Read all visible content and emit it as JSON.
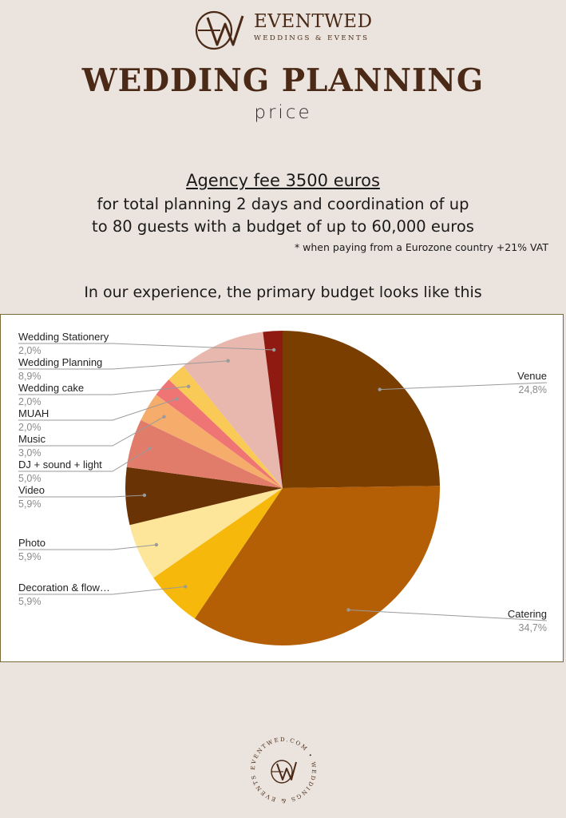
{
  "brand": {
    "name": "EVENTWED",
    "tagline": "WEDDINGS & EVENTS",
    "monogram": "EW",
    "seal_text": "EVENTWED.COM • WEDDINGS & EVENTS •"
  },
  "header": {
    "title": "WEDDING PLANNING",
    "subtitle": "price"
  },
  "offer": {
    "fee": "Agency fee 3500 euros",
    "line1": "for total planning 2 days and coordination of up",
    "line2": "to 80 guests with a budget of up to 60,000 euros",
    "vat_note": "* when paying from a Eurozone country +21% VAT"
  },
  "intro": "In our experience, the primary budget looks like this",
  "chart_data": {
    "type": "pie",
    "slices": [
      {
        "name": "Venue",
        "value": 24.8,
        "label": "24,8%",
        "color": "#7a3e00",
        "side": "right"
      },
      {
        "name": "Catering",
        "value": 34.7,
        "label": "34,7%",
        "color": "#b45f06",
        "side": "right"
      },
      {
        "name": "Decoration & flow…",
        "value": 5.9,
        "label": "5,9%",
        "color": "#f6b90b",
        "side": "left"
      },
      {
        "name": "Photo",
        "value": 5.9,
        "label": "5,9%",
        "color": "#fde59a",
        "side": "left"
      },
      {
        "name": "Video",
        "value": 5.9,
        "label": "5,9%",
        "color": "#6a3306",
        "side": "left"
      },
      {
        "name": "DJ + sound + light",
        "value": 5.0,
        "label": "5,0%",
        "color": "#e17c6b",
        "side": "left"
      },
      {
        "name": "Music",
        "value": 3.0,
        "label": "3,0%",
        "color": "#f6ad6b",
        "side": "left"
      },
      {
        "name": "MUAH",
        "value": 2.0,
        "label": "2,0%",
        "color": "#ef7575",
        "side": "left"
      },
      {
        "name": "Wedding cake",
        "value": 2.0,
        "label": "2,0%",
        "color": "#f9ca55",
        "side": "left"
      },
      {
        "name": "Wedding Planning",
        "value": 8.9,
        "label": "8,9%",
        "color": "#e8b8ae",
        "side": "left"
      },
      {
        "name": "Wedding Stationery",
        "value": 2.0,
        "label": "2,0%",
        "color": "#8f1a12",
        "side": "left"
      }
    ],
    "legend": "none",
    "labels": "outside with leader lines"
  }
}
